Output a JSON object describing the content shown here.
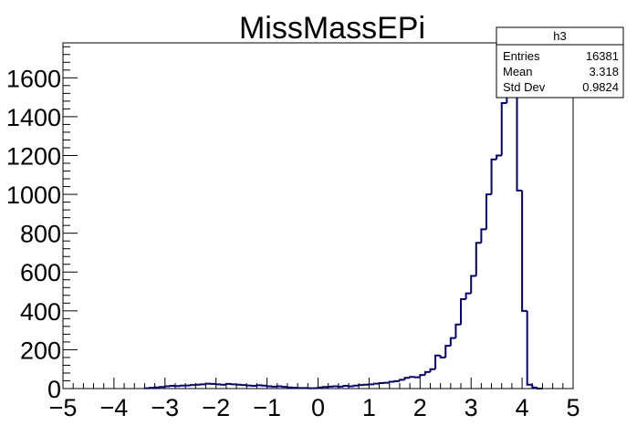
{
  "chart_data": {
    "type": "bar",
    "title": "MissMassEPi",
    "xlabel": "",
    "ylabel": "",
    "xlim": [
      -5,
      5
    ],
    "ylim": [
      0,
      1780
    ],
    "bin_width": 0.1,
    "x_ticks": [
      -5,
      -4,
      -3,
      -2,
      -1,
      0,
      1,
      2,
      3,
      4,
      5
    ],
    "x_tick_labels": [
      "−5",
      "−4",
      "−3",
      "−2",
      "−1",
      "0",
      "1",
      "2",
      "3",
      "4",
      "5"
    ],
    "y_ticks": [
      0,
      200,
      400,
      600,
      800,
      1000,
      1200,
      1400,
      1600
    ],
    "y_tick_labels": [
      "0",
      "200",
      "400",
      "600",
      "800",
      "1000",
      "1200",
      "1400",
      "1600"
    ],
    "series": [
      {
        "color": "#000080",
        "x_low": [
          -3.4,
          -3.3,
          -3.2,
          -3.1,
          -3.0,
          -2.9,
          -2.8,
          -2.7,
          -2.6,
          -2.5,
          -2.4,
          -2.3,
          -2.2,
          -2.1,
          -2.0,
          -1.9,
          -1.8,
          -1.7,
          -1.6,
          -1.5,
          -1.4,
          -1.3,
          -1.2,
          -1.1,
          -1.0,
          -0.9,
          -0.8,
          -0.7,
          -0.6,
          -0.5,
          -0.4,
          -0.3,
          -0.2,
          -0.1,
          0.0,
          0.1,
          0.2,
          0.3,
          0.4,
          0.5,
          0.6,
          0.7,
          0.8,
          0.9,
          1.0,
          1.1,
          1.2,
          1.3,
          1.4,
          1.5,
          1.6,
          1.7,
          1.8,
          1.9,
          2.0,
          2.1,
          2.2,
          2.3,
          2.4,
          2.5,
          2.6,
          2.7,
          2.8,
          2.9,
          3.0,
          3.1,
          3.2,
          3.3,
          3.4,
          3.5,
          3.6,
          3.7,
          3.8,
          3.9,
          4.0,
          4.1,
          4.2,
          4.3
        ],
        "values": [
          2,
          4,
          6,
          8,
          12,
          14,
          13,
          15,
          16,
          18,
          20,
          22,
          25,
          24,
          22,
          20,
          24,
          22,
          20,
          18,
          16,
          14,
          17,
          15,
          12,
          10,
          12,
          9,
          6,
          4,
          3,
          3,
          2,
          2,
          6,
          8,
          10,
          12,
          10,
          14,
          12,
          15,
          18,
          20,
          22,
          25,
          28,
          30,
          35,
          38,
          45,
          55,
          60,
          58,
          70,
          85,
          100,
          170,
          160,
          220,
          260,
          330,
          460,
          490,
          580,
          750,
          820,
          1000,
          1180,
          1200,
          1470,
          1600,
          1780,
          1020,
          400,
          20,
          5,
          0
        ]
      }
    ],
    "stats_box": {
      "title": "h3",
      "rows": [
        {
          "label": "Entries",
          "value": "16381"
        },
        {
          "label": "Mean",
          "value": "3.318"
        },
        {
          "label": "Std Dev",
          "value": "0.9824"
        }
      ]
    }
  }
}
